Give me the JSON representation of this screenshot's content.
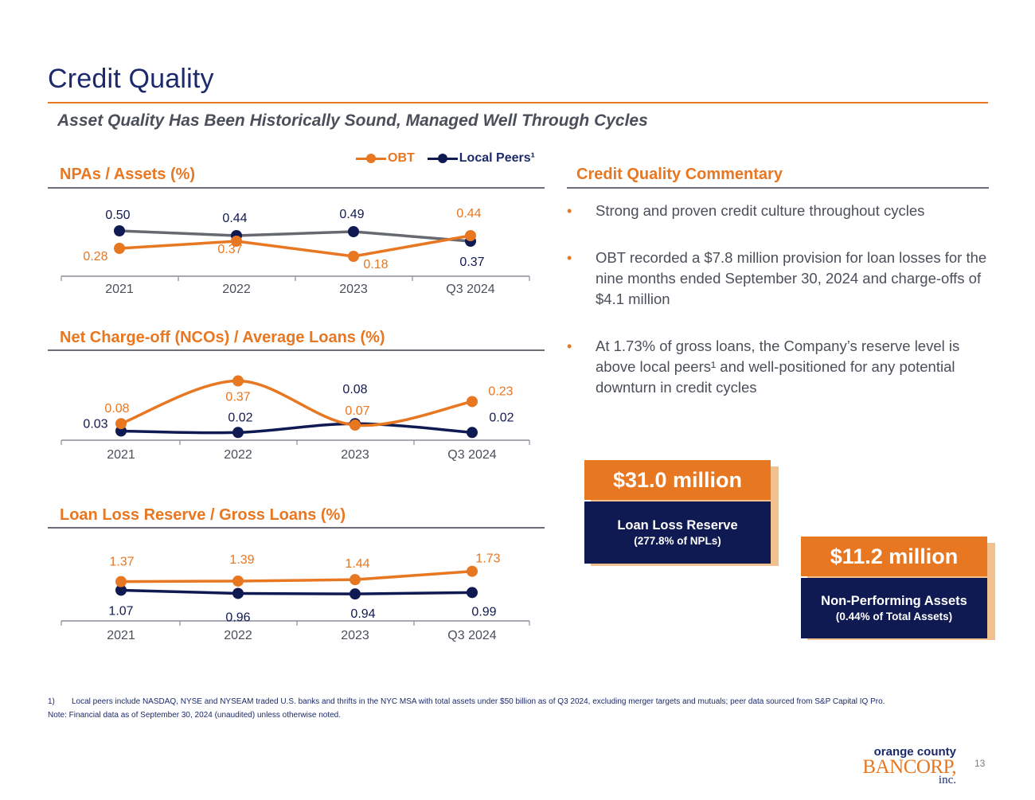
{
  "header": {
    "title": "Credit Quality",
    "subtitle": "Asset Quality Has Been Historically Sound, Managed Well Through Cycles"
  },
  "legend": {
    "obt": "OBT",
    "peers": "Local Peers¹"
  },
  "colors": {
    "obt": "#e87722",
    "peers": "#101a52",
    "peers_npa_line": "#666970",
    "accent": "#e87722",
    "navy": "#1c2a6b"
  },
  "charts": {
    "npa_title": "NPAs / Assets (%)",
    "nco_title": "Net Charge-off (NCOs) / Average Loans (%)",
    "reserve_title": "Loan Loss Reserve / Gross Loans (%)"
  },
  "chart_data": [
    {
      "type": "line",
      "title": "NPAs / Assets (%)",
      "categories": [
        "2021",
        "2022",
        "2023",
        "Q3 2024"
      ],
      "series": [
        {
          "name": "OBT",
          "values": [
            0.28,
            0.37,
            0.18,
            0.44
          ],
          "labels": [
            "0.28",
            "0.37",
            "0.18",
            "0.44"
          ]
        },
        {
          "name": "Local Peers¹",
          "values": [
            0.5,
            0.44,
            0.49,
            0.37
          ],
          "labels": [
            "0.50",
            "0.44",
            "0.49",
            "0.37"
          ]
        }
      ],
      "ylim": [
        0,
        0.6
      ],
      "grid": false
    },
    {
      "type": "line",
      "title": "Net Charge-off (NCOs) / Average Loans (%)",
      "categories": [
        "2021",
        "2022",
        "2023",
        "Q3 2024"
      ],
      "series": [
        {
          "name": "OBT",
          "values": [
            0.08,
            0.37,
            0.07,
            0.23
          ],
          "labels": [
            "0.08",
            "0.37",
            "0.07",
            "0.23"
          ]
        },
        {
          "name": "Local Peers¹",
          "values": [
            0.03,
            0.02,
            0.08,
            0.02
          ],
          "labels": [
            "0.03",
            "0.02",
            "0.08",
            "0.02"
          ]
        }
      ],
      "ylim": [
        0,
        0.4
      ],
      "grid": false
    },
    {
      "type": "line",
      "title": "Loan Loss Reserve / Gross Loans (%)",
      "categories": [
        "2021",
        "2022",
        "2023",
        "Q3 2024"
      ],
      "series": [
        {
          "name": "OBT",
          "values": [
            1.37,
            1.39,
            1.44,
            1.73
          ],
          "labels": [
            "1.37",
            "1.39",
            "1.44",
            "1.73"
          ]
        },
        {
          "name": "Local Peers¹",
          "values": [
            1.07,
            0.96,
            0.94,
            0.99
          ],
          "labels": [
            "1.07",
            "0.96",
            "0.94",
            "0.99"
          ]
        }
      ],
      "ylim": [
        0,
        3.0
      ],
      "grid": false
    }
  ],
  "commentary": {
    "title": "Credit Quality Commentary",
    "bullets": [
      "Strong and proven credit culture throughout cycles",
      "OBT recorded a $7.8 million provision for loan losses for the nine months ended September 30, 2024 and charge-offs of $4.1 million",
      "At 1.73% of gross loans, the Company’s reserve level is above local peers¹ and well-positioned for any potential downturn in credit cycles"
    ]
  },
  "cards": {
    "reserve": {
      "amount": "$31.0 million",
      "label": "Loan Loss Reserve",
      "sub": "(277.8% of NPLs)"
    },
    "npa": {
      "amount": "$11.2 million",
      "label": "Non-Performing Assets",
      "sub": "(0.44% of Total Assets)"
    }
  },
  "footnotes": {
    "num": "1)",
    "text": "Local peers include NASDAQ, NYSE and NYSEAM traded U.S. banks and thrifts in the NYC MSA with total assets under $50 billion as of Q3 2024, excluding merger targets and mutuals; peer data sourced from S&P Capital IQ Pro.",
    "note": "Note: Financial data as of September 30, 2024 (unaudited) unless otherwise noted."
  },
  "logo": {
    "line1": "orange county",
    "line2": "BANCORP,",
    "line3": "inc."
  },
  "page_number": "13"
}
